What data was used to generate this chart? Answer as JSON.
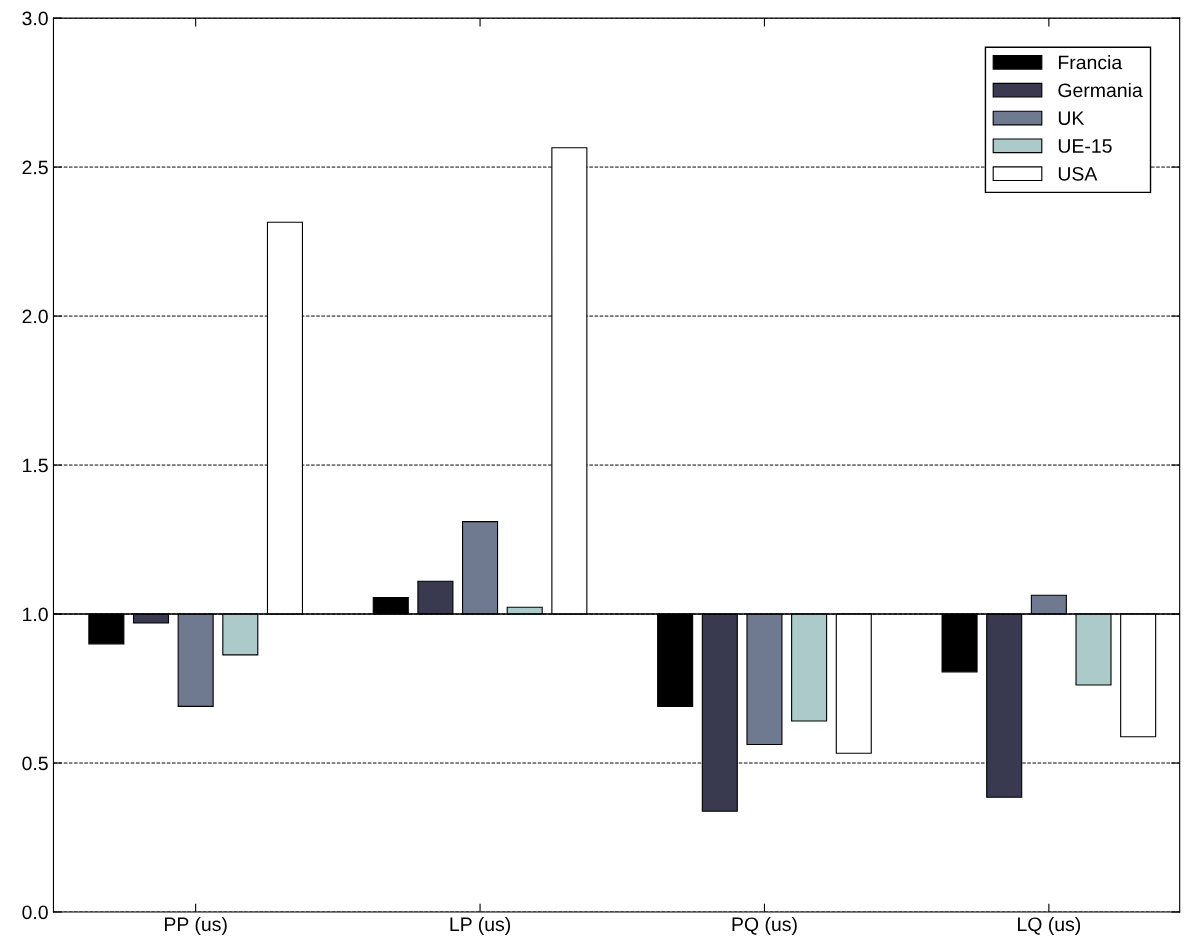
{
  "chart_data": {
    "type": "bar",
    "categories": [
      "PP (us)",
      "LP (us)",
      "PQ (us)",
      "LQ (us)"
    ],
    "series": [
      {
        "name": "Francia",
        "color": "#000000",
        "base": [
          1,
          1,
          1,
          1
        ],
        "values": [
          -0.1,
          0.055,
          -0.31,
          -0.194
        ]
      },
      {
        "name": "Germania",
        "color": "#393a4f",
        "base": [
          1,
          1,
          1,
          1
        ],
        "values": [
          -0.03,
          0.11,
          -0.662,
          -0.615
        ]
      },
      {
        "name": "UK",
        "color": "#6f7a91",
        "base": [
          1,
          1,
          1,
          1
        ],
        "values": [
          -0.31,
          0.31,
          -0.438,
          0.063
        ]
      },
      {
        "name": "UE-15",
        "color": "#abcac9",
        "base": [
          1,
          1,
          1,
          1
        ],
        "values": [
          -0.137,
          0.023,
          -0.359,
          -0.238
        ]
      },
      {
        "name": "USA",
        "color": "#ffffff",
        "base": [
          1,
          1,
          1,
          1
        ],
        "values": [
          1.315,
          1.565,
          -0.467,
          -0.412
        ]
      }
    ],
    "ylim": [
      0,
      3
    ],
    "yticks": [
      {
        "value": 0,
        "label": "0.0"
      },
      {
        "value": 0.5,
        "label": "0.5"
      },
      {
        "value": 1,
        "label": "1.0"
      },
      {
        "value": 1.5,
        "label": "1.5"
      },
      {
        "value": 2,
        "label": "2.0"
      },
      {
        "value": 2.5,
        "label": "2.5"
      },
      {
        "value": 3,
        "label": "3.0"
      }
    ],
    "ref_lines": [
      {
        "axis": "y",
        "value": 1,
        "color": "#000000",
        "line_style": "solid"
      }
    ],
    "grid": "y",
    "line_style": "dashed",
    "legend": "top right"
  }
}
